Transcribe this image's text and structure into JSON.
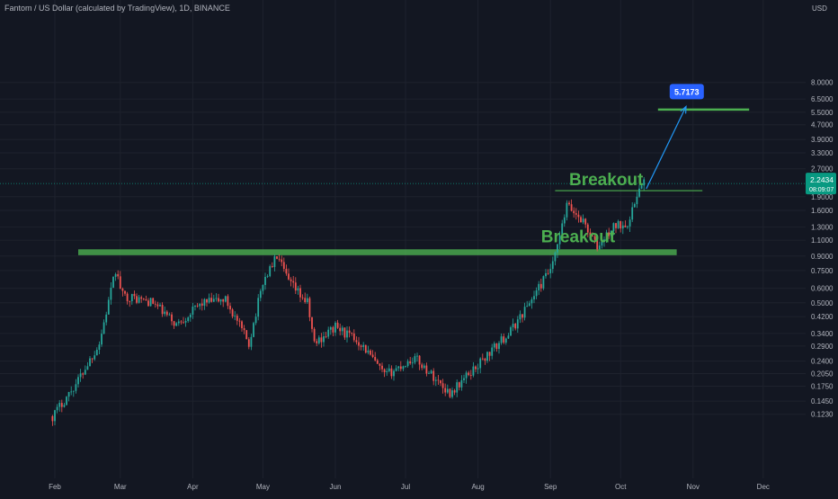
{
  "header": {
    "title": "Fantom / US Dollar (calculated by TradingView), 1D, BINANCE"
  },
  "price_axis": {
    "currency": "USD",
    "current_price": "2.2434",
    "countdown": "08:09:07"
  },
  "colors": {
    "background": "#131722",
    "up_candle": "#26a69a",
    "down_candle": "#ef5350",
    "zone": "#4caf50",
    "target_line": "#4caf50",
    "arrow": "#2196f3",
    "target_label_bg": "#2962ff",
    "price_label_bg": "#089981"
  },
  "chart_data": {
    "type": "candlestick",
    "symbol": "FTM/USD",
    "title": "Fantom / US Dollar (calculated by TradingView), 1D, BINANCE",
    "y_scale": "log",
    "ylabel": "USD",
    "y_ticks": [
      "8.0000",
      "6.5000",
      "5.5000",
      "4.7000",
      "3.9000",
      "3.3000",
      "2.7000",
      "2.2434",
      "1.9000",
      "1.6000",
      "1.3000",
      "1.1000",
      "0.9000",
      "0.7500",
      "0.6000",
      "0.5000",
      "0.4200",
      "0.3400",
      "0.2900",
      "0.2400",
      "0.2050",
      "0.1750",
      "0.1450",
      "0.1230"
    ],
    "x_ticks": [
      "Feb",
      "Mar",
      "Apr",
      "May",
      "Jun",
      "Jul",
      "Aug",
      "Sep",
      "Oct",
      "Nov",
      "Dec"
    ],
    "grid": true,
    "price_path": [
      {
        "date": "2021-01-31",
        "close": 0.12
      },
      {
        "date": "2021-02-10",
        "close": 0.18
      },
      {
        "date": "2021-02-20",
        "close": 0.3
      },
      {
        "date": "2021-02-27",
        "close": 0.75
      },
      {
        "date": "2021-03-02",
        "close": 0.55
      },
      {
        "date": "2021-03-15",
        "close": 0.5
      },
      {
        "date": "2021-03-25",
        "close": 0.38
      },
      {
        "date": "2021-04-05",
        "close": 0.5
      },
      {
        "date": "2021-04-15",
        "close": 0.52
      },
      {
        "date": "2021-04-25",
        "close": 0.3
      },
      {
        "date": "2021-05-01",
        "close": 0.65
      },
      {
        "date": "2021-05-07",
        "close": 0.9
      },
      {
        "date": "2021-05-12",
        "close": 0.65
      },
      {
        "date": "2021-05-20",
        "close": 0.5
      },
      {
        "date": "2021-05-23",
        "close": 0.3
      },
      {
        "date": "2021-06-01",
        "close": 0.37
      },
      {
        "date": "2021-06-12",
        "close": 0.3
      },
      {
        "date": "2021-06-22",
        "close": 0.2
      },
      {
        "date": "2021-07-05",
        "close": 0.25
      },
      {
        "date": "2021-07-20",
        "close": 0.16
      },
      {
        "date": "2021-08-01",
        "close": 0.23
      },
      {
        "date": "2021-08-15",
        "close": 0.35
      },
      {
        "date": "2021-08-25",
        "close": 0.55
      },
      {
        "date": "2021-09-02",
        "close": 0.8
      },
      {
        "date": "2021-09-06",
        "close": 1.3
      },
      {
        "date": "2021-09-08",
        "close": 1.7
      },
      {
        "date": "2021-09-15",
        "close": 1.4
      },
      {
        "date": "2021-09-21",
        "close": 1.0
      },
      {
        "date": "2021-09-28",
        "close": 1.3
      },
      {
        "date": "2021-10-05",
        "close": 1.4
      },
      {
        "date": "2021-10-08",
        "close": 2.0
      },
      {
        "date": "2021-10-11",
        "close": 2.2434
      }
    ],
    "resistance_zone": {
      "low": 0.91,
      "high": 0.98,
      "start": "2021-02-11",
      "end": "2021-10-25"
    },
    "breakout_line": {
      "price": 2.05,
      "start": "2021-09-03",
      "end": "2021-11-05"
    },
    "target": {
      "price": 5.7173,
      "label": "5.7173",
      "line_start": "2021-10-17",
      "line_end": "2021-11-25"
    },
    "annotations": [
      {
        "text": "Breakout",
        "date": "2021-08-28",
        "price": 1.07
      },
      {
        "text": "Breakout",
        "date": "2021-09-09",
        "price": 2.2
      }
    ]
  }
}
